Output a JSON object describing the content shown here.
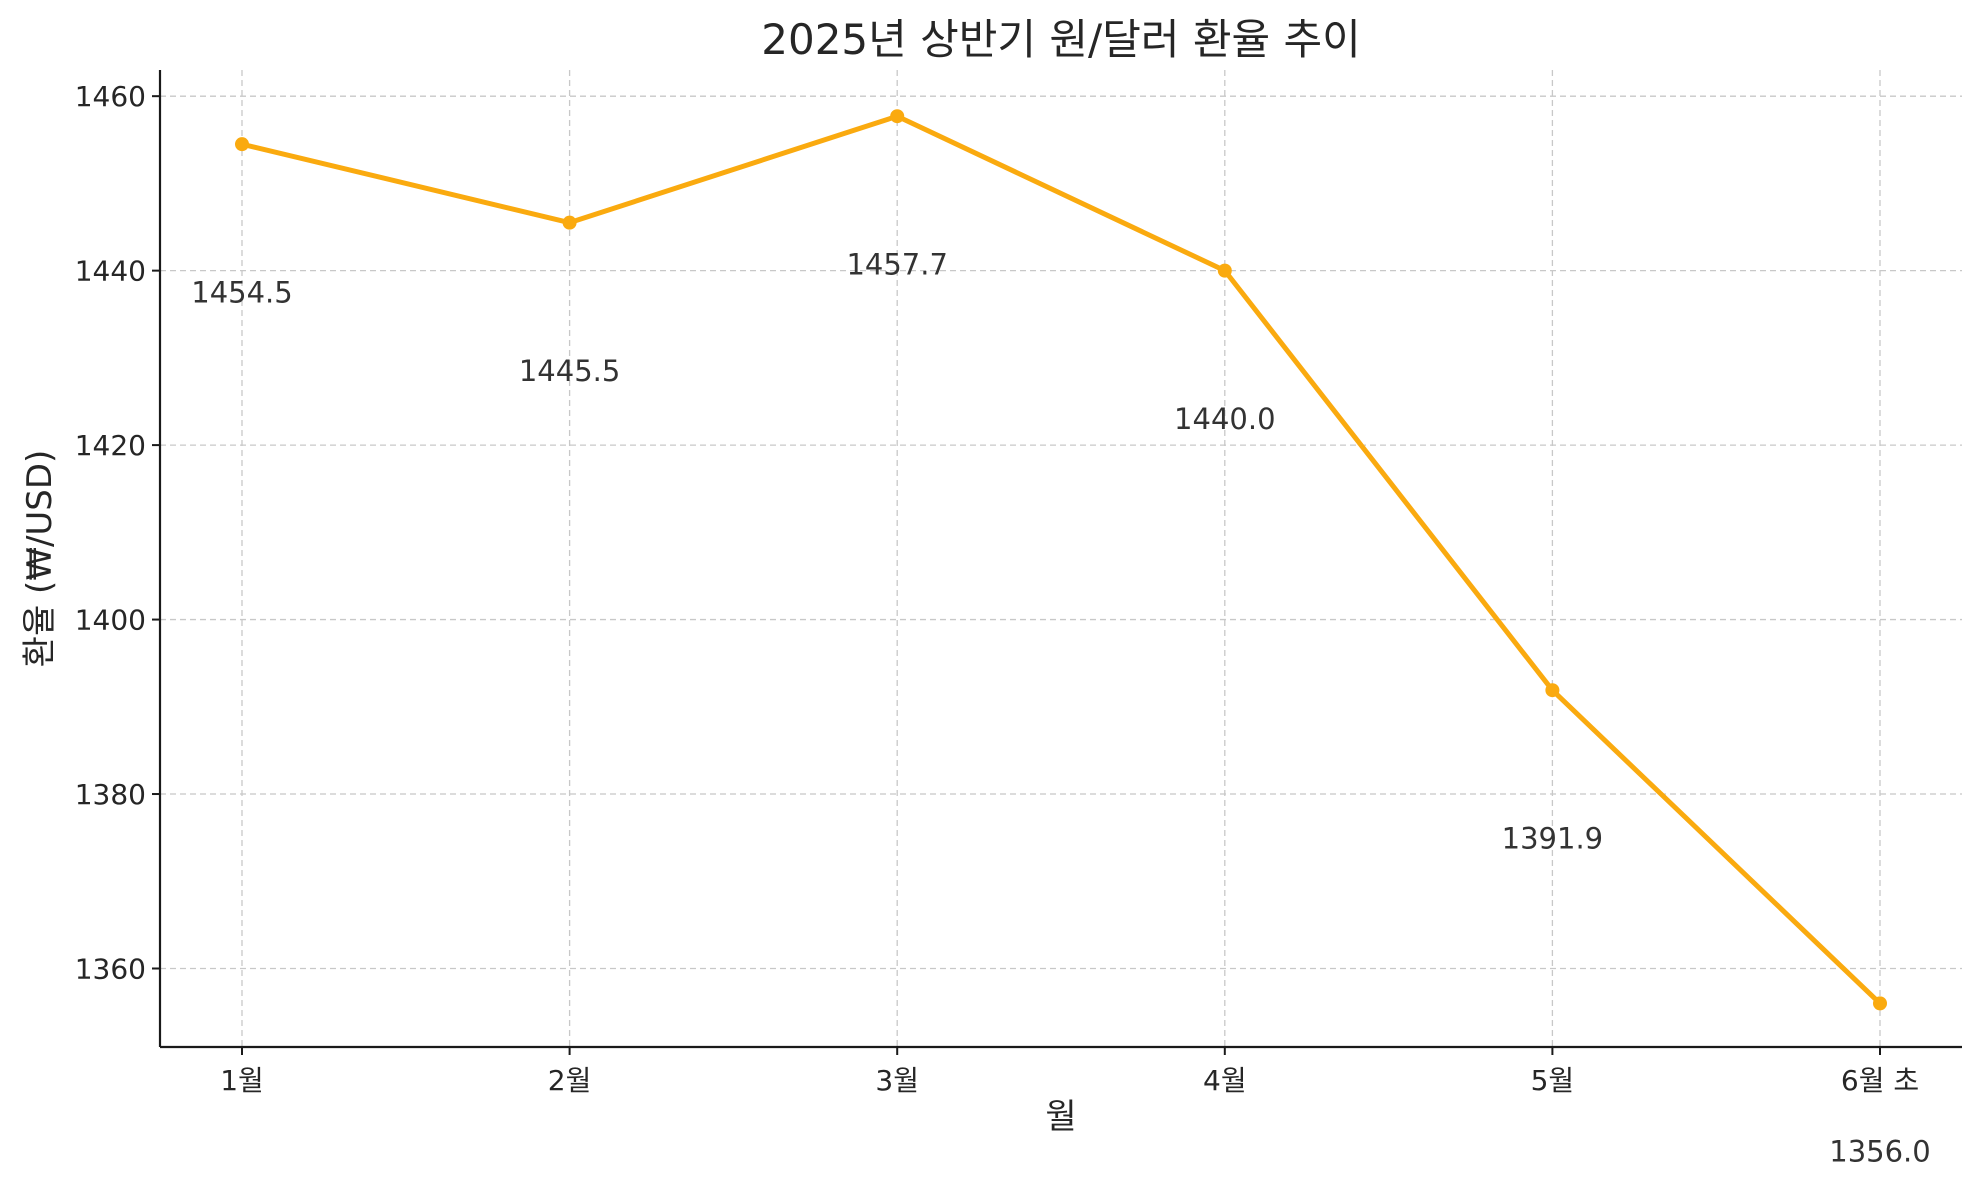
{
  "chart_data": {
    "type": "line",
    "title": "2025년 상반기 원/달러 환율 추이",
    "xlabel": "월",
    "ylabel": "환율 (₩/USD)",
    "categories": [
      "1월",
      "2월",
      "3월",
      "4월",
      "5월",
      "6월 초"
    ],
    "series": [
      {
        "values": [
          1454.5,
          1445.5,
          1457.7,
          1440.0,
          1391.9,
          1356.0
        ],
        "labels": [
          "1454.5",
          "1445.5",
          "1457.7",
          "1440.0",
          "1391.9",
          "1356.0"
        ]
      }
    ],
    "ylim": [
      1351,
      1463
    ],
    "yticks": [
      1360,
      1380,
      1400,
      1420,
      1440,
      1460
    ],
    "ytick_labels": [
      "1360",
      "1380",
      "1400",
      "1420",
      "1440",
      "1460"
    ],
    "grid": true,
    "legend": "none",
    "marker": "circle",
    "line_color": "#FAAA0F",
    "label_offset": -17
  }
}
